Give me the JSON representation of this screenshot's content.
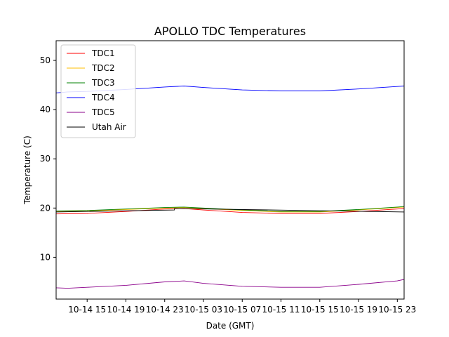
{
  "chart_data": {
    "type": "line",
    "title": "APOLLO TDC Temperatures",
    "xlabel": "Date (GMT)",
    "ylabel": "Temperature (C)",
    "xlim": [
      11.8,
      47.7
    ],
    "ylim": [
      1.5,
      54
    ],
    "x_tick_positions": [
      15,
      19,
      23,
      27,
      31,
      35,
      39,
      43,
      47
    ],
    "x_tick_labels": [
      "10-14 15",
      "10-14 19",
      "10-14 23",
      "10-15 03",
      "10-15 07",
      "10-15 11",
      "10-15 15",
      "10-15 19",
      "10-15 23"
    ],
    "y_ticks": [
      10,
      20,
      30,
      40,
      50
    ],
    "y_tick_labels": [
      "10",
      "20",
      "30",
      "40",
      "50"
    ],
    "legend_position": "top-left",
    "series": [
      {
        "name": "TDC1",
        "color": "#ff0000",
        "x": [
          11.8,
          15,
          19,
          23,
          25,
          27,
          31,
          35,
          39,
          43,
          47,
          47.7
        ],
        "y": [
          18.8,
          18.9,
          19.3,
          19.8,
          19.9,
          19.6,
          19.1,
          18.9,
          18.9,
          19.3,
          19.8,
          19.9
        ]
      },
      {
        "name": "TDC2",
        "color": "#ffbf00",
        "x": [
          11.8,
          15,
          19,
          23,
          25,
          27,
          31,
          35,
          39,
          43,
          47,
          47.7
        ],
        "y": [
          19.3,
          19.4,
          19.7,
          20.0,
          20.1,
          19.9,
          19.5,
          19.2,
          19.2,
          19.6,
          20.1,
          20.2
        ]
      },
      {
        "name": "TDC3",
        "color": "#008000",
        "x": [
          11.8,
          15,
          19,
          23,
          25,
          27,
          31,
          35,
          39,
          43,
          47,
          47.7
        ],
        "y": [
          19.4,
          19.5,
          19.8,
          20.1,
          20.2,
          20.0,
          19.6,
          19.3,
          19.3,
          19.7,
          20.2,
          20.3
        ]
      },
      {
        "name": "TDC4",
        "color": "#0000ff",
        "x": [
          11.8,
          13,
          15,
          19,
          23,
          25,
          27,
          31,
          35,
          39,
          43,
          47,
          47.7
        ],
        "y": [
          43.4,
          43.6,
          43.7,
          44.1,
          44.6,
          44.8,
          44.5,
          44.0,
          43.8,
          43.8,
          44.2,
          44.7,
          44.8
        ]
      },
      {
        "name": "TDC5",
        "color": "#8b008b",
        "x": [
          11.8,
          13,
          15,
          19,
          23,
          25,
          27,
          31,
          35,
          39,
          43,
          47,
          47.7
        ],
        "y": [
          3.8,
          3.7,
          3.9,
          4.3,
          5.0,
          5.2,
          4.7,
          4.1,
          3.9,
          3.9,
          4.5,
          5.2,
          5.5
        ]
      },
      {
        "name": "Utah Air",
        "color": "#000000",
        "x": [
          11.8,
          24,
          24.01,
          47.7
        ],
        "y": [
          19.2,
          19.6,
          19.9,
          19.2
        ]
      }
    ]
  }
}
